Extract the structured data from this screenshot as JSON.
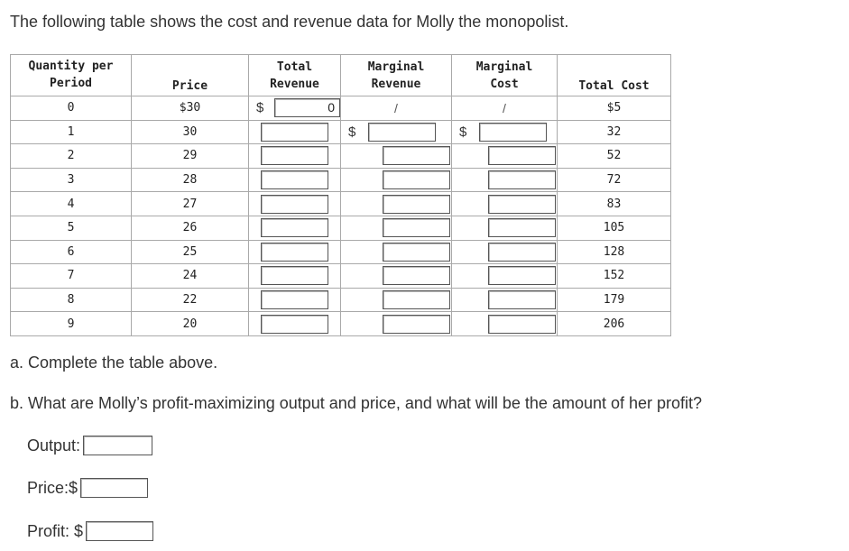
{
  "intro": "The following table shows the cost and revenue data for Molly the monopolist.",
  "table": {
    "headers": {
      "quantity": [
        "Quantity per",
        "Period"
      ],
      "price": "Price",
      "total_revenue": [
        "Total",
        "Revenue"
      ],
      "marginal_revenue": [
        "Marginal",
        "Revenue"
      ],
      "marginal_cost": [
        "Marginal",
        "Cost"
      ],
      "total_cost": "Total Cost"
    },
    "dollar_sign": "$",
    "first_total_revenue_value": "0",
    "slash": "/",
    "rows": [
      {
        "q": "0",
        "price": "$30",
        "tc": "$5"
      },
      {
        "q": "1",
        "price": "30",
        "tc": "32"
      },
      {
        "q": "2",
        "price": "29",
        "tc": "52"
      },
      {
        "q": "3",
        "price": "28",
        "tc": "72"
      },
      {
        "q": "4",
        "price": "27",
        "tc": "83"
      },
      {
        "q": "5",
        "price": "26",
        "tc": "105"
      },
      {
        "q": "6",
        "price": "25",
        "tc": "128"
      },
      {
        "q": "7",
        "price": "24",
        "tc": "152"
      },
      {
        "q": "8",
        "price": "22",
        "tc": "179"
      },
      {
        "q": "9",
        "price": "20",
        "tc": "206"
      }
    ]
  },
  "question_a": "a. Complete the table above.",
  "question_b": "b. What are Molly’s profit-maximizing output and price, and what will be the amount of her profit?",
  "answers": {
    "output_label": "Output:",
    "price_label": "Price:$",
    "profit_label": "Profit: $"
  }
}
